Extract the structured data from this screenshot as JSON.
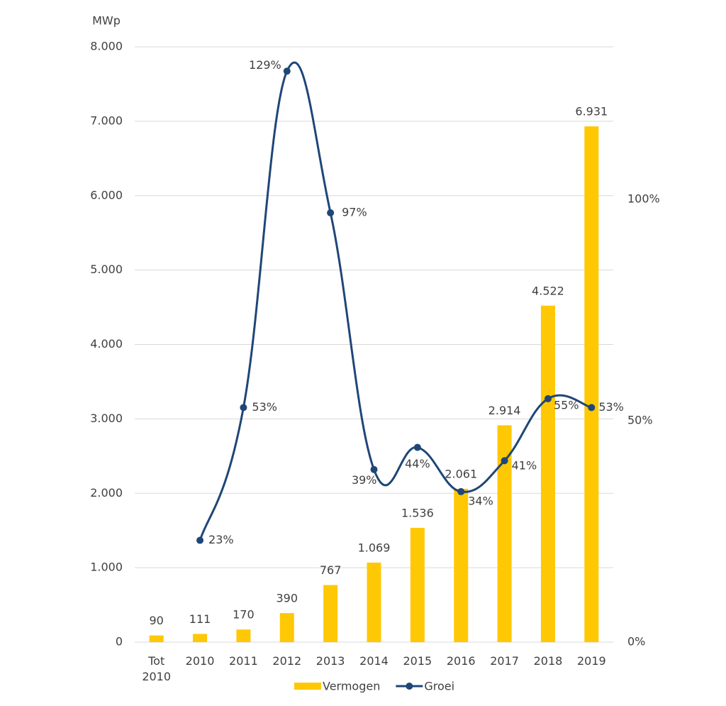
{
  "chart_data": {
    "type": "bar_line",
    "y_axis_label": "MWp",
    "categories": [
      "Tot 2010",
      "2010",
      "2011",
      "2012",
      "2013",
      "2014",
      "2015",
      "2016",
      "2017",
      "2018",
      "2019"
    ],
    "series": [
      {
        "name": "Vermogen",
        "type": "bar",
        "color": "#ffc805",
        "values": [
          90,
          111,
          170,
          390,
          767,
          1069,
          1536,
          2061,
          2914,
          4522,
          6931
        ],
        "value_labels": [
          "90",
          "111",
          "170",
          "390",
          "767",
          "1.069",
          "1.536",
          "2.061",
          "2.914",
          "4.522",
          "6.931"
        ]
      },
      {
        "name": "Groei",
        "type": "line",
        "axis": "y2",
        "color": "#1f4677",
        "values": [
          null,
          23,
          53,
          129,
          97,
          39,
          44,
          34,
          41,
          55,
          53
        ],
        "value_labels": [
          null,
          "23%",
          "53%",
          "129%",
          "97%",
          "39%",
          "44%",
          "34%",
          "41%",
          "55%",
          "53%"
        ]
      }
    ],
    "ylim": [
      0,
      8000
    ],
    "yticks": [
      0,
      {
        "value": 1000,
        "label": "1.000"
      },
      {
        "value": 2000,
        "label": "2.000"
      },
      {
        "value": 3000,
        "label": "3.000"
      },
      {
        "value": 4000,
        "label": "4.000"
      },
      {
        "value": 5000,
        "label": "5.000"
      },
      {
        "value": 6000,
        "label": "6.000"
      },
      {
        "value": 7000,
        "label": "7.000"
      },
      {
        "value": 8000,
        "label": "8.000"
      }
    ],
    "y2lim": [
      0,
      134.5
    ],
    "y2ticks": [
      {
        "value": 0,
        "label": "0%"
      },
      {
        "value": 50,
        "label": "50%"
      },
      {
        "value": 100,
        "label": "100%"
      }
    ],
    "grid": true,
    "legend": "bottom"
  }
}
